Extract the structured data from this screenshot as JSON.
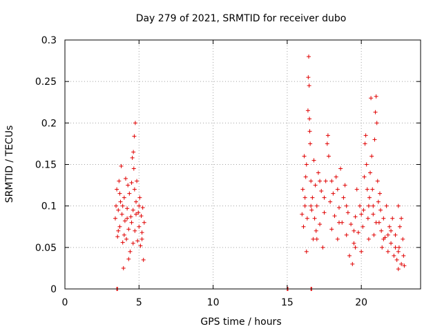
{
  "chart_data": {
    "type": "scatter",
    "title": "Day 279 of 2021, SRMTID for receiver dubo",
    "xlabel": "GPS time / hours",
    "ylabel": "SRMTID / TECUs",
    "xlim": [
      0,
      24
    ],
    "ylim": [
      0,
      0.3
    ],
    "xticks": [
      0,
      5,
      10,
      15,
      20
    ],
    "yticks": [
      0,
      0.05,
      0.1,
      0.15,
      0.2,
      0.25,
      0.3
    ],
    "xtick_labels": [
      "0",
      "5",
      "10",
      "15",
      "20"
    ],
    "ytick_labels": [
      "0",
      "0.05",
      "0.1",
      "0.15",
      "0.2",
      "0.25",
      "0.3"
    ],
    "grid": true,
    "marker": "+",
    "color": "#e00000",
    "series": [
      {
        "name": "SRMTID",
        "points": [
          [
            3.5,
            0.0
          ],
          [
            3.55,
            0.0
          ],
          [
            15.0,
            0.0
          ],
          [
            15.05,
            0.0
          ],
          [
            16.6,
            0.0
          ],
          [
            16.65,
            0.0
          ],
          [
            3.4,
            0.085
          ],
          [
            3.5,
            0.12
          ],
          [
            3.55,
            0.063
          ],
          [
            3.6,
            0.095
          ],
          [
            3.65,
            0.13
          ],
          [
            3.7,
            0.075
          ],
          [
            3.75,
            0.105
          ],
          [
            3.8,
            0.148
          ],
          [
            3.85,
            0.09
          ],
          [
            3.9,
            0.056
          ],
          [
            3.95,
            0.025
          ],
          [
            4.0,
            0.11
          ],
          [
            4.05,
            0.082
          ],
          [
            4.1,
            0.133
          ],
          [
            4.15,
            0.06
          ],
          [
            4.2,
            0.097
          ],
          [
            4.25,
            0.125
          ],
          [
            4.3,
            0.072
          ],
          [
            4.35,
            0.115
          ],
          [
            4.4,
            0.045
          ],
          [
            4.45,
            0.087
          ],
          [
            4.5,
            0.128
          ],
          [
            4.55,
            0.158
          ],
          [
            4.6,
            0.095
          ],
          [
            4.62,
            0.165
          ],
          [
            4.65,
            0.145
          ],
          [
            4.68,
            0.184
          ],
          [
            4.7,
            0.12
          ],
          [
            4.72,
            0.07
          ],
          [
            4.75,
            0.2
          ],
          [
            4.8,
            0.105
          ],
          [
            4.85,
            0.13
          ],
          [
            4.9,
            0.058
          ],
          [
            4.95,
            0.092
          ],
          [
            5.0,
            0.075
          ],
          [
            5.05,
            0.11
          ],
          [
            5.1,
            0.052
          ],
          [
            5.15,
            0.088
          ],
          [
            5.2,
            0.068
          ],
          [
            5.25,
            0.098
          ],
          [
            5.3,
            0.035
          ],
          [
            5.35,
            0.08
          ],
          [
            3.45,
            0.1
          ],
          [
            3.6,
            0.07
          ],
          [
            3.7,
            0.115
          ],
          [
            3.9,
            0.1
          ],
          [
            4.0,
            0.065
          ],
          [
            4.2,
            0.085
          ],
          [
            4.3,
            0.036
          ],
          [
            4.5,
            0.08
          ],
          [
            4.6,
            0.055
          ],
          [
            4.8,
            0.09
          ],
          [
            5.0,
            0.1
          ],
          [
            5.2,
            0.06
          ],
          [
            16.0,
            0.09
          ],
          [
            16.05,
            0.12
          ],
          [
            16.1,
            0.075
          ],
          [
            16.15,
            0.16
          ],
          [
            16.2,
            0.1
          ],
          [
            16.25,
            0.135
          ],
          [
            16.3,
            0.045
          ],
          [
            16.35,
            0.085
          ],
          [
            16.4,
            0.215
          ],
          [
            16.42,
            0.255
          ],
          [
            16.45,
            0.28
          ],
          [
            16.48,
            0.245
          ],
          [
            16.5,
            0.205
          ],
          [
            16.52,
            0.19
          ],
          [
            16.55,
            0.175
          ],
          [
            16.6,
            0.13
          ],
          [
            16.65,
            0.095
          ],
          [
            16.7,
            0.11
          ],
          [
            16.75,
            0.06
          ],
          [
            16.8,
            0.155
          ],
          [
            16.85,
            0.085
          ],
          [
            16.9,
            0.125
          ],
          [
            16.95,
            0.07
          ],
          [
            17.0,
            0.1
          ],
          [
            17.1,
            0.14
          ],
          [
            17.2,
            0.078
          ],
          [
            17.3,
            0.118
          ],
          [
            17.4,
            0.05
          ],
          [
            17.5,
            0.092
          ],
          [
            17.6,
            0.13
          ],
          [
            17.7,
            0.175
          ],
          [
            17.75,
            0.185
          ],
          [
            17.8,
            0.16
          ],
          [
            17.9,
            0.105
          ],
          [
            18.0,
            0.072
          ],
          [
            18.1,
            0.115
          ],
          [
            18.2,
            0.088
          ],
          [
            18.3,
            0.135
          ],
          [
            18.4,
            0.06
          ],
          [
            18.5,
            0.098
          ],
          [
            18.6,
            0.145
          ],
          [
            18.7,
            0.08
          ],
          [
            18.8,
            0.11
          ],
          [
            18.9,
            0.125
          ],
          [
            19.0,
            0.065
          ],
          [
            19.1,
            0.092
          ],
          [
            19.2,
            0.04
          ],
          [
            19.3,
            0.078
          ],
          [
            19.4,
            0.03
          ],
          [
            19.5,
            0.055
          ],
          [
            19.6,
            0.087
          ],
          [
            19.7,
            0.12
          ],
          [
            19.8,
            0.068
          ],
          [
            19.9,
            0.1
          ],
          [
            20.0,
            0.045
          ],
          [
            20.1,
            0.075
          ],
          [
            20.15,
            0.095
          ],
          [
            20.2,
            0.135
          ],
          [
            20.25,
            0.175
          ],
          [
            20.3,
            0.185
          ],
          [
            20.35,
            0.15
          ],
          [
            20.4,
            0.12
          ],
          [
            20.45,
            0.085
          ],
          [
            20.5,
            0.06
          ],
          [
            20.55,
            0.11
          ],
          [
            20.6,
            0.14
          ],
          [
            20.65,
            0.23
          ],
          [
            20.7,
            0.16
          ],
          [
            20.75,
            0.12
          ],
          [
            20.8,
            0.09
          ],
          [
            20.85,
            0.065
          ],
          [
            20.9,
            0.18
          ],
          [
            20.95,
            0.213
          ],
          [
            21.0,
            0.232
          ],
          [
            21.05,
            0.2
          ],
          [
            21.1,
            0.13
          ],
          [
            21.15,
            0.105
          ],
          [
            21.2,
            0.08
          ],
          [
            21.25,
            0.115
          ],
          [
            21.3,
            0.095
          ],
          [
            21.35,
            0.07
          ],
          [
            21.4,
            0.05
          ],
          [
            21.5,
            0.085
          ],
          [
            21.6,
            0.062
          ],
          [
            21.7,
            0.1
          ],
          [
            21.8,
            0.045
          ],
          [
            21.9,
            0.075
          ],
          [
            22.0,
            0.055
          ],
          [
            22.1,
            0.085
          ],
          [
            22.2,
            0.04
          ],
          [
            22.3,
            0.065
          ],
          [
            22.4,
            0.035
          ],
          [
            22.5,
            0.1
          ],
          [
            22.55,
            0.05
          ],
          [
            22.6,
            0.075
          ],
          [
            22.7,
            0.03
          ],
          [
            22.8,
            0.06
          ],
          [
            22.85,
            0.04
          ],
          [
            22.9,
            0.028
          ],
          [
            22.5,
            0.024
          ],
          [
            16.2,
            0.11
          ],
          [
            16.6,
            0.1
          ],
          [
            17.0,
            0.06
          ],
          [
            17.5,
            0.11
          ],
          [
            18.0,
            0.13
          ],
          [
            18.5,
            0.08
          ],
          [
            19.0,
            0.1
          ],
          [
            19.5,
            0.07
          ],
          [
            20.0,
            0.09
          ],
          [
            20.5,
            0.1
          ],
          [
            21.0,
            0.08
          ],
          [
            21.5,
            0.06
          ],
          [
            22.0,
            0.07
          ],
          [
            22.5,
            0.045
          ],
          [
            22.7,
            0.085
          ],
          [
            16.3,
            0.15
          ],
          [
            17.2,
            0.13
          ],
          [
            18.4,
            0.12
          ],
          [
            19.6,
            0.05
          ],
          [
            20.8,
            0.1
          ],
          [
            21.8,
            0.065
          ],
          [
            22.3,
            0.05
          ]
        ]
      }
    ]
  }
}
